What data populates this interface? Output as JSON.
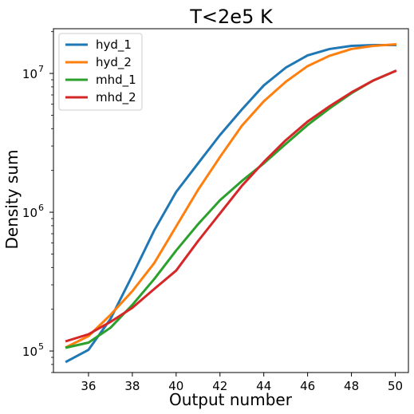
{
  "chart_data": {
    "type": "line",
    "title": "T<2e5 K",
    "xlabel": "Output number",
    "ylabel": "Density sum",
    "yscale": "log",
    "xlim": [
      34.4,
      50.6
    ],
    "ylim": [
      70000,
      21000000
    ],
    "x_ticks": [
      36,
      38,
      40,
      42,
      44,
      46,
      48,
      50
    ],
    "x_tick_labels": [
      "36",
      "38",
      "40",
      "42",
      "44",
      "46",
      "48",
      "50"
    ],
    "y_ticks": [
      100000,
      1000000,
      10000000
    ],
    "y_tick_labels": [
      {
        "base": "10",
        "exp": "5"
      },
      {
        "base": "10",
        "exp": "6"
      },
      {
        "base": "10",
        "exp": "7"
      }
    ],
    "legend_position": "top-left",
    "grid": false,
    "x": [
      35,
      36,
      37,
      38,
      39,
      40,
      41,
      42,
      43,
      44,
      45,
      46,
      47,
      48,
      49,
      50
    ],
    "series": [
      {
        "name": "hyd_1",
        "color": "#1f77b4",
        "values": [
          84000,
          102000,
          170000,
          350000,
          740000,
          1400000,
          2250000,
          3600000,
          5500000,
          8200000,
          11000000,
          13500000,
          15000000,
          15800000,
          16000000,
          16000000
        ]
      },
      {
        "name": "hyd_2",
        "color": "#ff7f0e",
        "values": [
          107000,
          128000,
          182000,
          270000,
          430000,
          790000,
          1450000,
          2500000,
          4200000,
          6300000,
          8700000,
          11300000,
          13400000,
          15000000,
          15800000,
          16200000
        ]
      },
      {
        "name": "mhd_1",
        "color": "#2ca02c",
        "values": [
          106000,
          115000,
          147000,
          215000,
          330000,
          530000,
          820000,
          1220000,
          1680000,
          2250000,
          3100000,
          4250000,
          5600000,
          7200000,
          8900000,
          10400000
        ]
      },
      {
        "name": "mhd_2",
        "color": "#d62728",
        "values": [
          118000,
          132000,
          162000,
          205000,
          280000,
          380000,
          620000,
          980000,
          1550000,
          2300000,
          3300000,
          4500000,
          5800000,
          7300000,
          8900000,
          10400000
        ]
      }
    ]
  }
}
